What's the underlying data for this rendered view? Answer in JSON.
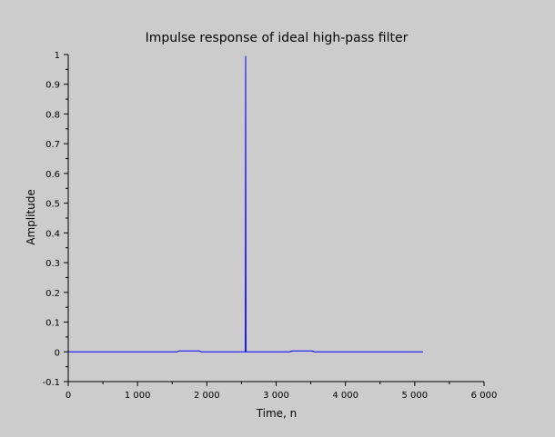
{
  "chart_data": {
    "type": "line",
    "title": "Impulse response of ideal high-pass filter",
    "xlabel": "Time, n",
    "ylabel": "Amplitude",
    "xlim": [
      0,
      6000
    ],
    "ylim": [
      -0.1,
      1
    ],
    "x_ticks": [
      0,
      1000,
      2000,
      3000,
      4000,
      5000,
      6000
    ],
    "x_tick_labels": [
      "0",
      "1 000",
      "2 000",
      "3 000",
      "4 000",
      "5 000",
      "6 000"
    ],
    "y_ticks": [
      -0.1,
      0,
      0.1,
      0.2,
      0.3,
      0.4,
      0.5,
      0.6,
      0.7,
      0.8,
      0.9,
      1
    ],
    "y_tick_labels": [
      "-0.1",
      "0",
      "0.1",
      "0.2",
      "0.3",
      "0.4",
      "0.5",
      "0.6",
      "0.7",
      "0.8",
      "0.9",
      "1"
    ],
    "grid": false,
    "series": [
      {
        "color": "#0000ff",
        "x": [
          1,
          1570,
          1600,
          1890,
          1920,
          2555,
          2560,
          2565,
          3200,
          3230,
          3520,
          3550,
          5120
        ],
        "y": [
          0,
          0,
          0.003,
          0.003,
          0,
          0,
          0.995,
          0,
          0,
          0.003,
          0.003,
          0,
          0
        ]
      }
    ]
  }
}
